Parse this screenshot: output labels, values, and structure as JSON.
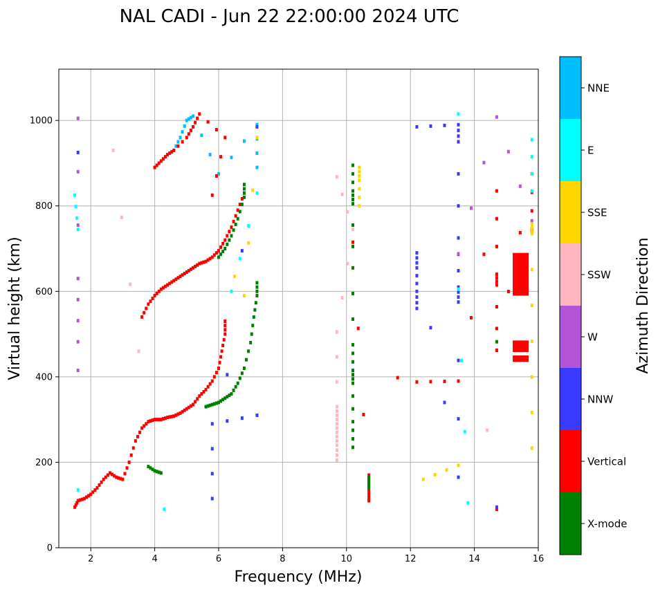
{
  "chart_data": {
    "type": "scatter",
    "title": "NAL CADI - Jun 22 22:00:00 2024 UTC",
    "xlabel": "Frequency (MHz)",
    "ylabel": "Virtual height (km)",
    "xlim": [
      1,
      16
    ],
    "ylim": [
      0,
      1120
    ],
    "xticks": [
      2,
      4,
      6,
      8,
      10,
      12,
      14,
      16
    ],
    "yticks": [
      0,
      200,
      400,
      600,
      800,
      1000
    ],
    "grid": true,
    "colorbar": {
      "label": "Azimuth Direction",
      "categories": [
        {
          "name": "X-mode",
          "color": "#008000"
        },
        {
          "name": "Vertical",
          "color": "#ff0000"
        },
        {
          "name": "NNW",
          "color": "#3a3aff"
        },
        {
          "name": "W",
          "color": "#b455d8"
        },
        {
          "name": "SSW",
          "color": "#ffb6c1"
        },
        {
          "name": "SSE",
          "color": "#ffd700"
        },
        {
          "name": "E",
          "color": "#00ffff"
        },
        {
          "name": "NNE",
          "color": "#00bfff"
        }
      ]
    },
    "traces": [
      {
        "category": "Vertical",
        "points": [
          [
            1.5,
            95
          ],
          [
            1.6,
            110
          ],
          [
            1.8,
            115
          ],
          [
            2.0,
            125
          ],
          [
            2.2,
            140
          ],
          [
            2.4,
            160
          ],
          [
            2.6,
            175
          ],
          [
            2.8,
            165
          ],
          [
            3.0,
            160
          ],
          [
            3.2,
            200
          ],
          [
            3.4,
            250
          ],
          [
            3.6,
            280
          ],
          [
            3.8,
            295
          ],
          [
            4.0,
            300
          ],
          [
            4.2,
            300
          ],
          [
            4.4,
            305
          ],
          [
            4.6,
            308
          ],
          [
            4.8,
            315
          ],
          [
            5.0,
            325
          ],
          [
            5.2,
            335
          ],
          [
            5.4,
            355
          ],
          [
            5.6,
            370
          ],
          [
            5.8,
            390
          ],
          [
            6.0,
            420
          ],
          [
            6.1,
            460
          ],
          [
            6.2,
            500
          ],
          [
            6.2,
            530
          ]
        ]
      },
      {
        "category": "X-mode",
        "points": [
          [
            5.6,
            330
          ],
          [
            5.8,
            335
          ],
          [
            6.0,
            340
          ],
          [
            6.2,
            350
          ],
          [
            6.4,
            360
          ],
          [
            6.6,
            385
          ],
          [
            6.8,
            420
          ],
          [
            7.0,
            480
          ],
          [
            7.1,
            540
          ],
          [
            7.2,
            590
          ],
          [
            7.2,
            620
          ]
        ]
      },
      {
        "category": "Vertical",
        "points": [
          [
            3.6,
            540
          ],
          [
            3.8,
            570
          ],
          [
            4.0,
            590
          ],
          [
            4.2,
            605
          ],
          [
            4.4,
            615
          ],
          [
            4.6,
            625
          ],
          [
            4.8,
            635
          ],
          [
            5.0,
            645
          ],
          [
            5.2,
            655
          ],
          [
            5.4,
            665
          ],
          [
            5.6,
            670
          ],
          [
            5.8,
            680
          ],
          [
            6.0,
            695
          ],
          [
            6.2,
            720
          ],
          [
            6.4,
            750
          ],
          [
            6.6,
            790
          ],
          [
            6.8,
            830
          ]
        ]
      },
      {
        "category": "X-mode",
        "points": [
          [
            6.0,
            680
          ],
          [
            6.2,
            700
          ],
          [
            6.4,
            730
          ],
          [
            6.6,
            770
          ],
          [
            6.8,
            820
          ],
          [
            6.8,
            850
          ]
        ]
      },
      {
        "category": "NNE",
        "points": [
          [
            4.6,
            930
          ],
          [
            4.8,
            960
          ],
          [
            5.0,
            1000
          ],
          [
            5.2,
            1010
          ],
          [
            6.0,
            875
          ],
          [
            7.2,
            990
          ],
          [
            7.2,
            890
          ]
        ]
      },
      {
        "category": "Vertical",
        "points": [
          [
            4.0,
            890
          ],
          [
            4.2,
            905
          ],
          [
            4.4,
            920
          ],
          [
            4.6,
            930
          ],
          [
            5.0,
            960
          ],
          [
            5.2,
            985
          ],
          [
            5.4,
            1015
          ],
          [
            6.2,
            960
          ],
          [
            5.8,
            825
          ]
        ]
      },
      {
        "category": "X-mode",
        "points": [
          [
            3.8,
            190
          ],
          [
            4.0,
            180
          ],
          [
            4.2,
            175
          ],
          [
            10.2,
            895
          ],
          [
            10.2,
            835
          ],
          [
            10.2,
            805
          ],
          [
            10.2,
            655
          ],
          [
            10.2,
            475
          ],
          [
            10.2,
            415
          ],
          [
            10.2,
            385
          ],
          [
            10.2,
            295
          ],
          [
            10.2,
            235
          ]
        ]
      },
      {
        "category": "Vertical",
        "points": [
          [
            10.7,
            170
          ],
          [
            10.7,
            150
          ],
          [
            10.7,
            130
          ],
          [
            10.7,
            110
          ],
          [
            10.2,
            715
          ],
          [
            12.2,
            388
          ],
          [
            13.5,
            390
          ],
          [
            14.7,
            835
          ],
          [
            14.7,
            640
          ],
          [
            14.7,
            615
          ],
          [
            14.7,
            462
          ],
          [
            15.8,
            875
          ],
          [
            15.8,
            745
          ],
          [
            15.8,
            740
          ],
          [
            11.6,
            398
          ],
          [
            14.7,
            90
          ]
        ]
      },
      {
        "category": "X-mode",
        "points": [
          [
            10.7,
            165
          ],
          [
            10.7,
            140
          ],
          [
            14.7,
            482
          ]
        ]
      },
      {
        "category": "NNW",
        "points": [
          [
            1.6,
            925
          ],
          [
            12.2,
            985
          ],
          [
            13.5,
            990
          ],
          [
            13.5,
            950
          ],
          [
            13.5,
            725
          ],
          [
            13.5,
            610
          ],
          [
            13.5,
            575
          ],
          [
            13.5,
            165
          ],
          [
            12.2,
            690
          ],
          [
            12.2,
            655
          ],
          [
            12.2,
            600
          ],
          [
            12.2,
            560
          ],
          [
            7.2,
            310
          ],
          [
            5.8,
            290
          ],
          [
            5.8,
            115
          ],
          [
            7.2,
            985
          ],
          [
            14.7,
            95
          ]
        ]
      },
      {
        "category": "W",
        "points": [
          [
            1.6,
            1005
          ],
          [
            1.6,
            630
          ],
          [
            1.6,
            482
          ],
          [
            13.5,
            688
          ],
          [
            14.7,
            1008
          ],
          [
            15.8,
            765
          ],
          [
            1.6,
            415
          ]
        ]
      },
      {
        "category": "SSW",
        "points": [
          [
            9.7,
            868
          ],
          [
            10.2,
            745
          ],
          [
            9.7,
            505
          ],
          [
            9.7,
            330
          ],
          [
            9.7,
            300
          ],
          [
            9.7,
            270
          ],
          [
            9.7,
            240
          ],
          [
            9.7,
            205
          ],
          [
            14.4,
            275
          ],
          [
            2.7,
            930
          ],
          [
            3.5,
            460
          ]
        ]
      },
      {
        "category": "SSE",
        "points": [
          [
            10.4,
            890
          ],
          [
            10.4,
            860
          ],
          [
            10.4,
            800
          ],
          [
            7.2,
            960
          ],
          [
            6.8,
            590
          ],
          [
            13.5,
            193
          ],
          [
            12.4,
            160
          ],
          [
            15.8,
            758
          ],
          [
            15.8,
            735
          ],
          [
            15.8,
            483
          ],
          [
            15.8,
            233
          ],
          [
            6.5,
            635
          ]
        ]
      },
      {
        "category": "E",
        "points": [
          [
            13.5,
            1015
          ],
          [
            15.8,
            955
          ],
          [
            15.8,
            835
          ],
          [
            13.5,
            605
          ],
          [
            13.8,
            105
          ],
          [
            1.6,
            745
          ],
          [
            1.5,
            825
          ],
          [
            7.2,
            830
          ],
          [
            6.4,
            600
          ],
          [
            4.3,
            90
          ],
          [
            1.6,
            135
          ]
        ]
      }
    ],
    "blocks": [
      {
        "category": "Vertical",
        "x": [
          15.2,
          15.7
        ],
        "y": [
          590,
          690
        ]
      },
      {
        "category": "Vertical",
        "x": [
          15.2,
          15.7
        ],
        "y": [
          458,
          485
        ]
      },
      {
        "category": "Vertical",
        "x": [
          15.2,
          15.7
        ],
        "y": [
          435,
          450
        ]
      }
    ]
  }
}
